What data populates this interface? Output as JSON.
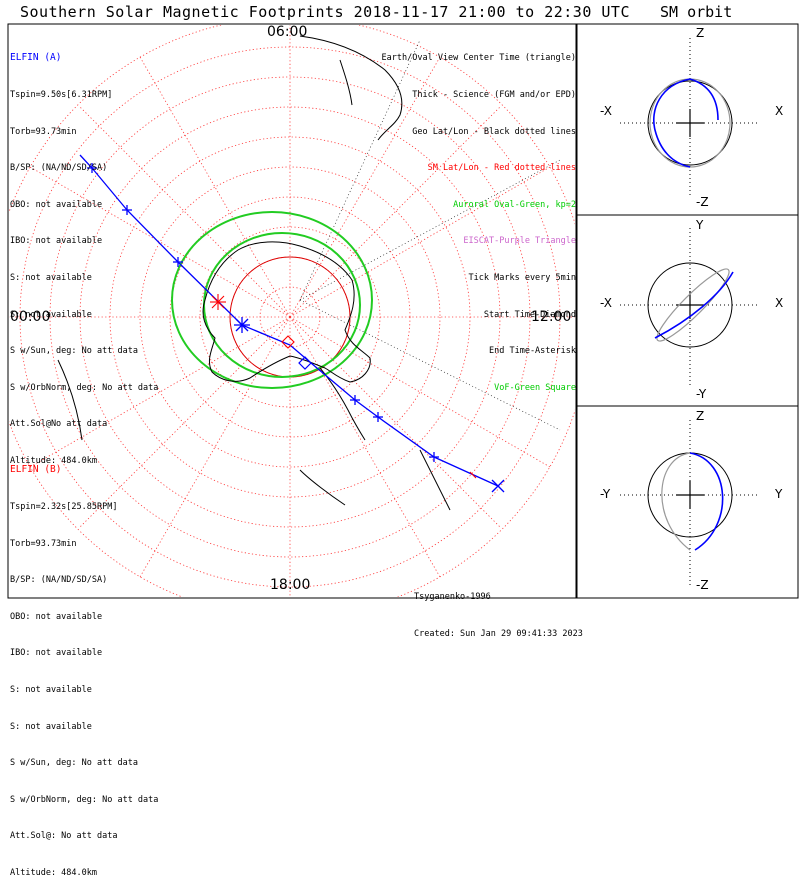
{
  "title": "Southern Solar Magnetic Footprints 2018-11-17 21:00 to 22:30 UTC",
  "sm_title": "SM orbit",
  "time_labels": {
    "top": "06:00",
    "left": "00:00",
    "right": "12:00",
    "bottom": "18:00"
  },
  "elfin_a": {
    "color": "#0000ff",
    "lines": [
      "ELFIN (A)",
      "Tspin=9.50s[6.31RPM]",
      "Torb=93.73min",
      "B/SP: (NA/ND/SD/SA)",
      "OBO: not available",
      "IBO: not available",
      "S: not available",
      "S: not available",
      "S w/Sun, deg: No att data",
      "S w/OrbNorm, deg: No att data",
      "Att.Sol@No att data",
      "Altitude: 484.0km"
    ]
  },
  "elfin_b": {
    "color": "#ff0000",
    "lines": [
      "ELFIN (B)",
      "Tspin=2.32s[25.85RPM]",
      "Torb=93.73min",
      "B/SP: (NA/ND/SD/SA)",
      "OBO: not available",
      "IBO: not available",
      "S: not available",
      "S: not available",
      "S w/Sun, deg: No att data",
      "S w/OrbNorm, deg: No att data",
      "Att.Sol@: No att data",
      "Altitude: 484.0km"
    ]
  },
  "legend": [
    {
      "text": "Earth/Oval View Center Time (triangle)",
      "color": "#000000"
    },
    {
      "text": "Thick - Science (FGM and/or EPD)",
      "color": "#000000"
    },
    {
      "text": "Geo Lat/Lon - Black dotted lines",
      "color": "#000000"
    },
    {
      "text": "SM Lat/Lon - Red dotted lines",
      "color": "#ff0000"
    },
    {
      "text": "Auroral Oval-Green, kp=2",
      "color": "#00cc00"
    },
    {
      "text": "EISCAT-Purple Triangle",
      "color": "#cc66cc"
    },
    {
      "text": "Tick Marks every 5min",
      "color": "#000000"
    },
    {
      "text": "Start Time-Diamond",
      "color": "#000000"
    },
    {
      "text": "End Time-Asterisk",
      "color": "#000000"
    },
    {
      "text": "VoF-Green Square",
      "color": "#00cc00"
    }
  ],
  "footer": {
    "author": "Tsyganenko-1996",
    "created": "Created: Sun Jan 29 09:41:33 2023"
  },
  "sm_panels": [
    {
      "up": "Z",
      "down": "-Z",
      "left": "-X",
      "right": "X"
    },
    {
      "up": "Y",
      "down": "-Y",
      "left": "-X",
      "right": "X"
    },
    {
      "up": "Z",
      "down": "-Z",
      "left": "-Y",
      "right": "Y"
    }
  ],
  "colors": {
    "elfin_a": "#0000ff",
    "elfin_b": "#ff0000",
    "oval": "#00cc00",
    "grid_sm": "#ff0000"
  }
}
